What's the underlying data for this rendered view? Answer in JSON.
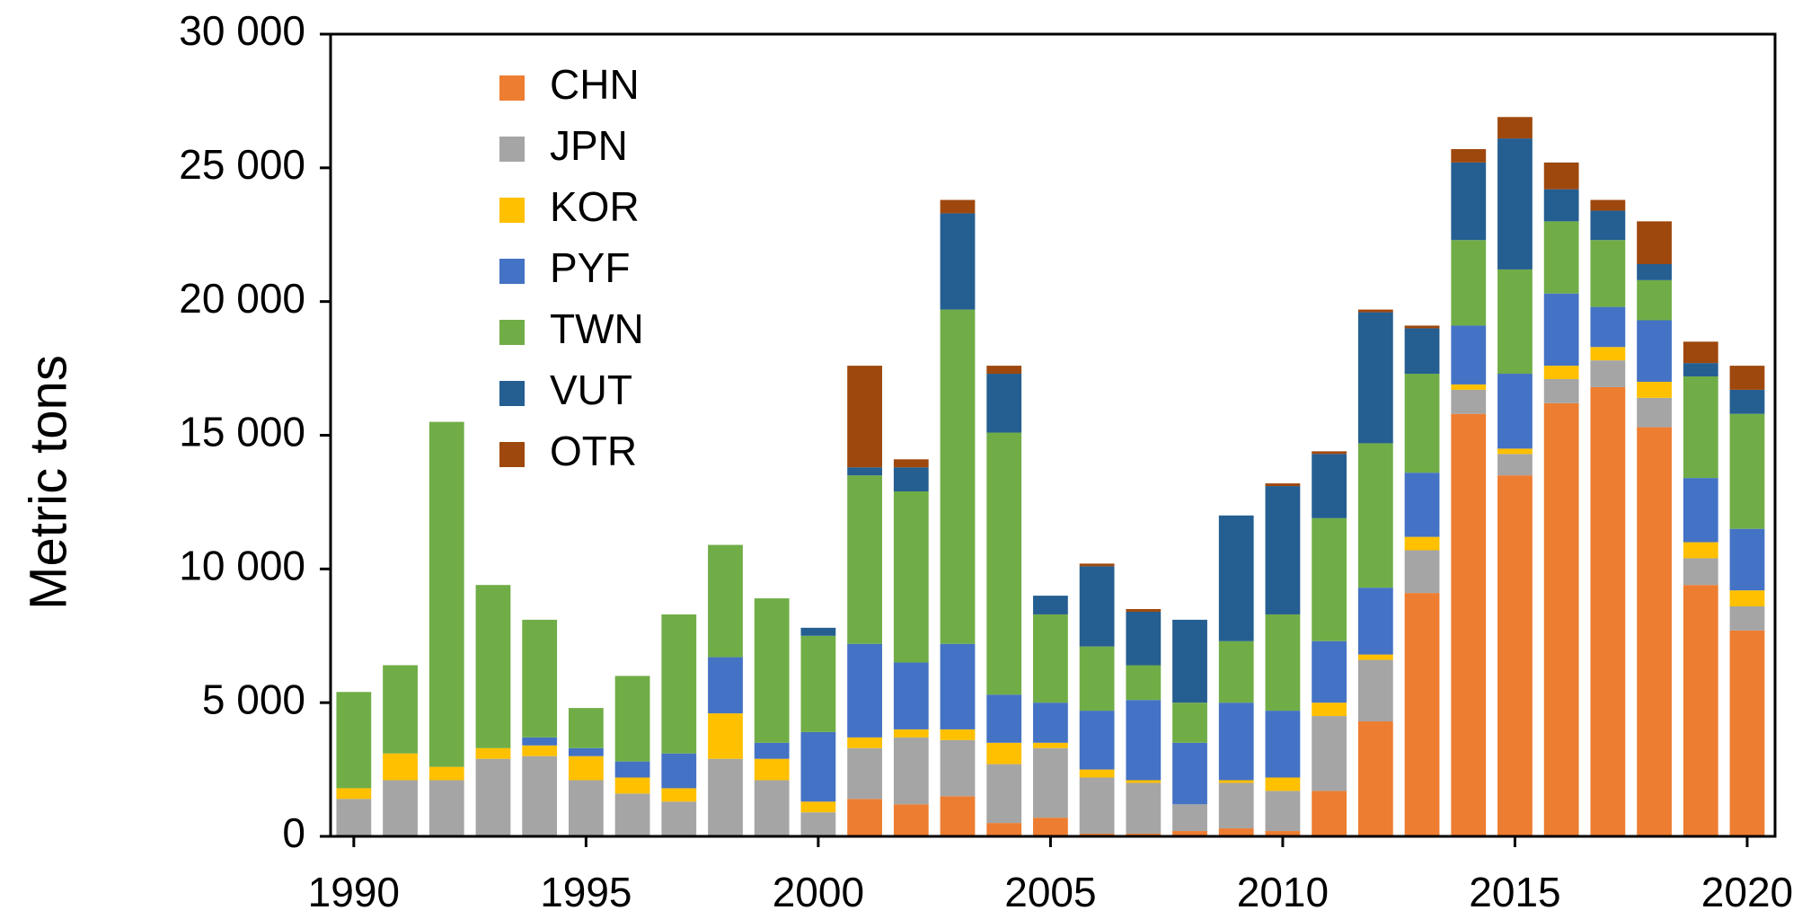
{
  "chart_data": {
    "type": "stacked_bar",
    "y_label": "Metric tons",
    "x": [
      1990,
      1991,
      1992,
      1993,
      1994,
      1995,
      1996,
      1997,
      1998,
      1999,
      2000,
      2001,
      2002,
      2003,
      2004,
      2005,
      2006,
      2007,
      2008,
      2009,
      2010,
      2011,
      2012,
      2013,
      2014,
      2015,
      2016,
      2017,
      2018,
      2019,
      2020
    ],
    "series": [
      {
        "name": "CHN",
        "color": "#ed7d31",
        "values": [
          0,
          0,
          0,
          0,
          0,
          0,
          0,
          0,
          0,
          0,
          0,
          1400,
          1200,
          1500,
          500,
          700,
          100,
          100,
          200,
          300,
          200,
          1700,
          4300,
          9100,
          15800,
          13500,
          16200,
          16800,
          15300,
          9400,
          7700
        ]
      },
      {
        "name": "JPN",
        "color": "#a5a5a5",
        "values": [
          1400,
          2100,
          2100,
          2900,
          3000,
          2100,
          1600,
          1300,
          2900,
          2100,
          900,
          1900,
          2500,
          2100,
          2200,
          2600,
          2100,
          1900,
          1000,
          1700,
          1500,
          2800,
          2300,
          1600,
          900,
          800,
          900,
          1000,
          1100,
          1000,
          900
        ]
      },
      {
        "name": "KOR",
        "color": "#ffc000",
        "values": [
          400,
          1000,
          500,
          400,
          400,
          900,
          600,
          500,
          1700,
          800,
          400,
          400,
          300,
          400,
          800,
          200,
          300,
          100,
          0,
          100,
          500,
          500,
          200,
          500,
          200,
          200,
          500,
          500,
          600,
          600,
          600
        ]
      },
      {
        "name": "PYF",
        "color": "#4472c4",
        "values": [
          0,
          0,
          0,
          0,
          300,
          300,
          600,
          1300,
          2100,
          600,
          2600,
          3500,
          2500,
          3200,
          1800,
          1500,
          2200,
          3000,
          2300,
          2900,
          2500,
          2300,
          2500,
          2400,
          2200,
          2800,
          2700,
          1500,
          2300,
          2400,
          2300
        ]
      },
      {
        "name": "TWN",
        "color": "#70ad47",
        "values": [
          3600,
          3300,
          12900,
          6100,
          4400,
          1500,
          3200,
          5200,
          4200,
          5400,
          3600,
          6300,
          6400,
          12500,
          9800,
          3300,
          2400,
          1300,
          1500,
          2300,
          3600,
          4600,
          5400,
          3700,
          3200,
          3900,
          2700,
          2500,
          1500,
          3800,
          4300
        ]
      },
      {
        "name": "VUT",
        "color": "#255e91",
        "values": [
          0,
          0,
          0,
          0,
          0,
          0,
          0,
          0,
          0,
          0,
          300,
          300,
          900,
          3600,
          2200,
          700,
          3000,
          2000,
          3100,
          4700,
          4800,
          2400,
          4900,
          1700,
          2900,
          4900,
          1200,
          1100,
          600,
          500,
          900
        ]
      },
      {
        "name": "OTR",
        "color": "#9e480e",
        "values": [
          0,
          0,
          0,
          0,
          0,
          0,
          0,
          0,
          0,
          0,
          0,
          3800,
          300,
          500,
          300,
          0,
          100,
          100,
          0,
          0,
          100,
          100,
          100,
          100,
          500,
          800,
          1000,
          400,
          1600,
          800,
          900
        ]
      }
    ],
    "xlim": [
      1989.5,
      2020.6
    ],
    "xticks": [
      1990,
      1995,
      2000,
      2005,
      2010,
      2015,
      2020
    ],
    "ylim": [
      0,
      30000
    ],
    "yticks": [
      0,
      {
        "value": 5000,
        "label": "5 000"
      },
      {
        "value": 10000,
        "label": "10 000"
      },
      {
        "value": 15000,
        "label": "15 000"
      },
      {
        "value": 20000,
        "label": "20 000"
      },
      {
        "value": 25000,
        "label": "25 000"
      },
      {
        "value": 30000,
        "label": "30 000"
      }
    ],
    "legend": "upper left"
  }
}
